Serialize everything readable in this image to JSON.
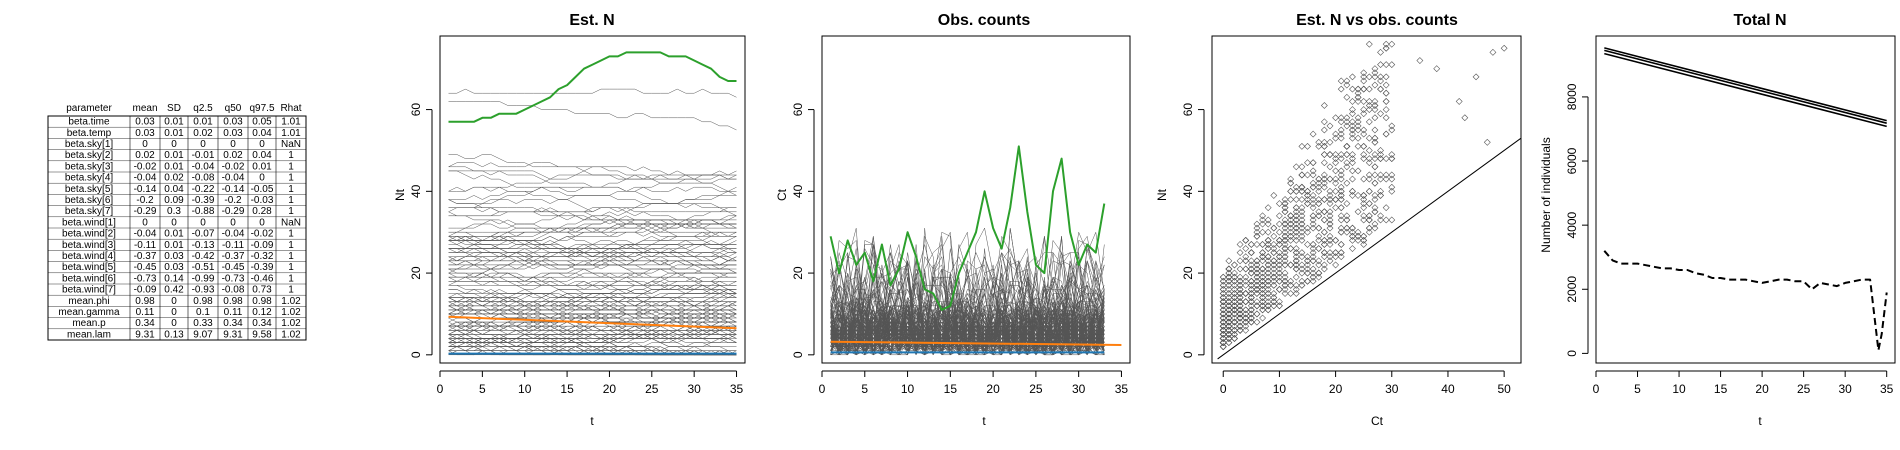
{
  "table": {
    "columns": [
      "parameter",
      "mean",
      "SD",
      "q2.5",
      "q50",
      "q97.5",
      "Rhat"
    ],
    "rows": [
      [
        "beta.time",
        "0.03",
        "0.01",
        "0.01",
        "0.03",
        "0.05",
        "1.01"
      ],
      [
        "beta.temp",
        "0.03",
        "0.01",
        "0.02",
        "0.03",
        "0.04",
        "1.01"
      ],
      [
        "beta.sky[1]",
        "0",
        "0",
        "0",
        "0",
        "0",
        "NaN"
      ],
      [
        "beta.sky[2]",
        "0.02",
        "0.01",
        "-0.01",
        "0.02",
        "0.04",
        "1"
      ],
      [
        "beta.sky[3]",
        "-0.02",
        "0.01",
        "-0.04",
        "-0.02",
        "0.01",
        "1"
      ],
      [
        "beta.sky[4]",
        "-0.04",
        "0.02",
        "-0.08",
        "-0.04",
        "0",
        "1"
      ],
      [
        "beta.sky[5]",
        "-0.14",
        "0.04",
        "-0.22",
        "-0.14",
        "-0.05",
        "1"
      ],
      [
        "beta.sky[6]",
        "-0.2",
        "0.09",
        "-0.39",
        "-0.2",
        "-0.03",
        "1"
      ],
      [
        "beta.sky[7]",
        "-0.29",
        "0.3",
        "-0.88",
        "-0.29",
        "0.28",
        "1"
      ],
      [
        "beta.wind[1]",
        "0",
        "0",
        "0",
        "0",
        "0",
        "NaN"
      ],
      [
        "beta.wind[2]",
        "-0.04",
        "0.01",
        "-0.07",
        "-0.04",
        "-0.02",
        "1"
      ],
      [
        "beta.wind[3]",
        "-0.11",
        "0.01",
        "-0.13",
        "-0.11",
        "-0.09",
        "1"
      ],
      [
        "beta.wind[4]",
        "-0.37",
        "0.03",
        "-0.42",
        "-0.37",
        "-0.32",
        "1"
      ],
      [
        "beta.wind[5]",
        "-0.45",
        "0.03",
        "-0.51",
        "-0.45",
        "-0.39",
        "1"
      ],
      [
        "beta.wind[6]",
        "-0.73",
        "0.14",
        "-0.99",
        "-0.73",
        "-0.46",
        "1"
      ],
      [
        "beta.wind[7]",
        "-0.09",
        "0.42",
        "-0.93",
        "-0.08",
        "0.73",
        "1"
      ],
      [
        "mean.phi",
        "0.98",
        "0",
        "0.98",
        "0.98",
        "0.98",
        "1.02"
      ],
      [
        "mean.gamma",
        "0.11",
        "0",
        "0.1",
        "0.11",
        "0.12",
        "1.02"
      ],
      [
        "mean.p",
        "0.34",
        "0",
        "0.33",
        "0.34",
        "0.34",
        "1.02"
      ],
      [
        "mean.lam",
        "9.31",
        "0.13",
        "9.07",
        "9.31",
        "9.58",
        "1.02"
      ]
    ]
  },
  "chart_data": [
    {
      "type": "line",
      "title": "Est. N",
      "xlabel": "t",
      "ylabel": "Nt",
      "xlim": [
        0,
        36
      ],
      "ylim": [
        -2,
        78
      ],
      "xticks": [
        0,
        5,
        10,
        15,
        20,
        25,
        30,
        35
      ],
      "yticks": [
        0,
        20,
        40,
        60
      ],
      "background_series": "many gray lines, one per site, values 0–70",
      "highlight": [
        {
          "color": "#2ca02c",
          "x": [
            1,
            2,
            3,
            4,
            5,
            6,
            7,
            8,
            9,
            10,
            11,
            12,
            13,
            14,
            15,
            16,
            17,
            18,
            19,
            20,
            21,
            22,
            23,
            24,
            25,
            26,
            27,
            28,
            29,
            30,
            31,
            32,
            33,
            34,
            35
          ],
          "y": [
            57,
            57,
            57,
            57,
            58,
            58,
            59,
            59,
            59,
            60,
            61,
            62,
            63,
            65,
            66,
            68,
            70,
            71,
            72,
            73,
            73,
            74,
            74,
            74,
            74,
            74,
            73,
            73,
            73,
            72,
            71,
            70,
            68,
            67,
            67
          ]
        },
        {
          "color": "#ff7f0e",
          "x": [
            1,
            35
          ],
          "y": [
            9.3,
            6.5
          ]
        },
        {
          "color": "#1f77b4",
          "x": [
            1,
            35
          ],
          "y": [
            0.3,
            0.3
          ]
        }
      ]
    },
    {
      "type": "line",
      "title": "Obs. counts",
      "xlabel": "t",
      "ylabel": "Ct",
      "xlim": [
        0,
        36
      ],
      "ylim": [
        -2,
        78
      ],
      "xticks": [
        0,
        5,
        10,
        15,
        20,
        25,
        30,
        35
      ],
      "yticks": [
        0,
        20,
        40,
        60
      ],
      "background_series": "many gray lines, one per site, values 0–45",
      "highlight": [
        {
          "color": "#2ca02c",
          "x": [
            1,
            2,
            3,
            4,
            5,
            6,
            7,
            8,
            9,
            10,
            11,
            12,
            13,
            14,
            15,
            16,
            17,
            18,
            19,
            20,
            21,
            22,
            23,
            24,
            25,
            26,
            27,
            28,
            29,
            30,
            31,
            32,
            33
          ],
          "y": [
            29,
            20,
            28,
            22,
            25,
            18,
            27,
            17,
            21,
            30,
            24,
            16,
            15,
            11,
            12,
            20,
            25,
            30,
            40,
            31,
            26,
            36,
            51,
            35,
            22,
            20,
            40,
            48,
            30,
            22,
            27,
            25,
            37
          ]
        },
        {
          "color": "#ff7f0e",
          "x": [
            1,
            35
          ],
          "y": [
            3.2,
            2.4
          ]
        },
        {
          "color": "#1f77b4",
          "x": [
            1,
            33
          ],
          "y": [
            0.6,
            0.6
          ]
        }
      ]
    },
    {
      "type": "scatter",
      "title": "Est. N vs obs. counts",
      "xlabel": "Ct",
      "ylabel": "Nt",
      "xlim": [
        -2,
        53
      ],
      "ylim": [
        -2,
        78
      ],
      "xticks": [
        0,
        10,
        20,
        30,
        40,
        50
      ],
      "yticks": [
        0,
        20,
        40,
        60
      ],
      "reference_line": {
        "from": [
          -1,
          -1
        ],
        "to": [
          53,
          53
        ]
      },
      "points_note": "dense cloud of open diamonds above the 1:1 line"
    },
    {
      "type": "line",
      "title": "Total N",
      "xlabel": "t",
      "ylabel": "Number of individuals",
      "xlim": [
        0,
        36
      ],
      "ylim": [
        -300,
        9900
      ],
      "xticks": [
        0,
        5,
        10,
        15,
        20,
        25,
        30,
        35
      ],
      "yticks": [
        0,
        2000,
        4000,
        6000,
        8000
      ],
      "series": [
        {
          "style": "solid",
          "x": [
            1,
            35
          ],
          "y": [
            9450,
            7180
          ]
        },
        {
          "style": "solid",
          "x": [
            1,
            35
          ],
          "y": [
            9350,
            7080
          ]
        },
        {
          "style": "solid",
          "x": [
            1,
            35
          ],
          "y": [
            9530,
            7260
          ]
        },
        {
          "style": "dashed",
          "x": [
            1,
            2,
            3,
            4,
            5,
            6,
            7,
            8,
            9,
            10,
            11,
            12,
            13,
            14,
            15,
            16,
            17,
            18,
            19,
            20,
            21,
            22,
            23,
            24,
            25,
            26,
            27,
            28,
            29,
            30,
            31,
            32,
            33,
            34,
            34.4,
            35
          ],
          "y": [
            3200,
            2900,
            2800,
            2800,
            2800,
            2750,
            2700,
            2650,
            2650,
            2600,
            2600,
            2500,
            2450,
            2350,
            2350,
            2300,
            2300,
            2300,
            2250,
            2200,
            2250,
            2300,
            2300,
            2250,
            2250,
            2000,
            2200,
            2150,
            2100,
            2200,
            2250,
            2300,
            2300,
            100,
            600,
            1900
          ]
        }
      ]
    }
  ]
}
